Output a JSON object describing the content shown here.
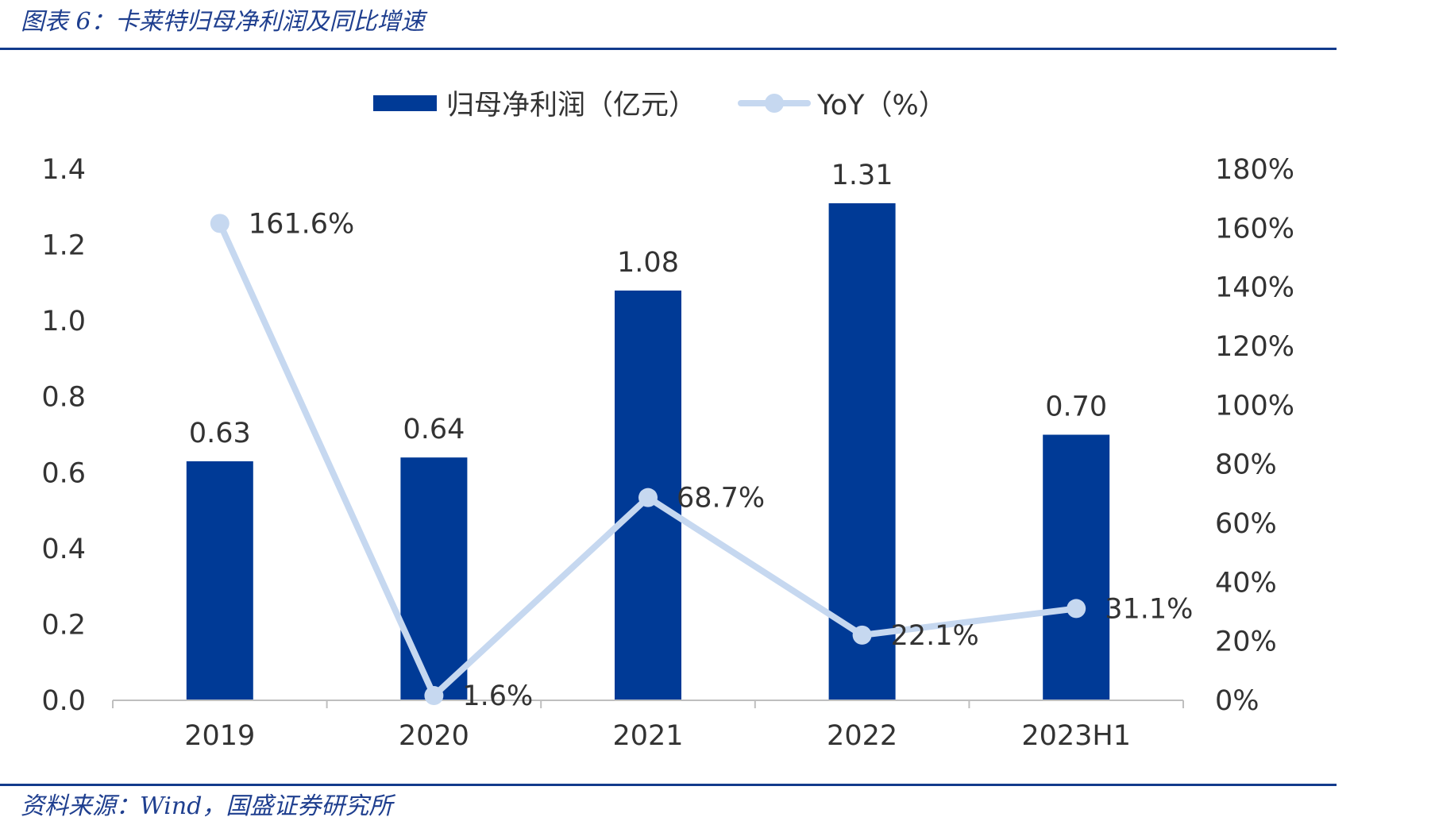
{
  "header": {
    "title": "图表 6：卡莱特归母净利润及同比增速"
  },
  "footer": {
    "source": "资料来源：Wind，国盛证券研究所"
  },
  "colors": {
    "bar": "#003a96",
    "line": "#c6d8f0",
    "rule": "#123a8c",
    "title_text": "#1f3f8f",
    "axis": "#bfbfbf",
    "label_text": "#333333"
  },
  "chart_data": {
    "type": "bar",
    "title": "",
    "categories": [
      "2019",
      "2020",
      "2021",
      "2022",
      "2023H1"
    ],
    "series": [
      {
        "name": "归母净利润（亿元）",
        "type": "bar",
        "axis": "left",
        "values": [
          0.63,
          0.64,
          1.08,
          1.31,
          0.7
        ],
        "labels": [
          "0.63",
          "0.64",
          "1.08",
          "1.31",
          "0.70"
        ]
      },
      {
        "name": "YoY（%）",
        "type": "line",
        "axis": "right",
        "values": [
          161.6,
          1.6,
          68.7,
          22.1,
          31.1
        ],
        "labels": [
          "161.6%",
          "1.6%",
          "68.7%",
          "22.1%",
          "31.1%"
        ]
      }
    ],
    "y_left": {
      "ylim": [
        0,
        1.4
      ],
      "ticks": [
        "0.0",
        "0.2",
        "0.4",
        "0.6",
        "0.8",
        "1.0",
        "1.2",
        "1.4"
      ]
    },
    "y_right": {
      "ylim": [
        0,
        180
      ],
      "ticks": [
        "0%",
        "20%",
        "40%",
        "60%",
        "80%",
        "100%",
        "120%",
        "140%",
        "160%",
        "180%"
      ]
    },
    "legend_position": "top-center",
    "grid": false
  }
}
